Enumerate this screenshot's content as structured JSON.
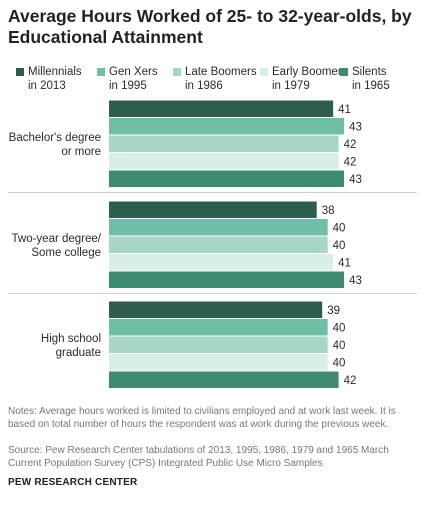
{
  "title": "Average Hours Worked of 25- to 32-year-olds, by Educational Attainment",
  "colors": {
    "Millennials in 2013": "#2e5d4e",
    "Gen Xers in 1995": "#6fbfa8",
    "Late Boomers in 1986": "#a8d6c6",
    "Early Boomers in 1979": "#d9eee6",
    "Silents in 1965": "#3e8b6f"
  },
  "chart_data": {
    "type": "bar",
    "orientation": "horizontal",
    "categories": [
      "Bachelor's degree or more",
      "Two-year degree/ Some college",
      "High school graduate"
    ],
    "category_labels": [
      [
        "Bachelor's degree",
        "or more"
      ],
      [
        "Two-year degree/",
        "Some college"
      ],
      [
        "High school",
        "graduate"
      ]
    ],
    "series": [
      {
        "name": "Millennials in 2013",
        "legend_lines": [
          "Millennials",
          "in 2013"
        ],
        "values": [
          41,
          38,
          39
        ]
      },
      {
        "name": "Gen Xers in 1995",
        "legend_lines": [
          "Gen Xers",
          "in 1995"
        ],
        "values": [
          43,
          40,
          40
        ]
      },
      {
        "name": "Late Boomers in 1986",
        "legend_lines": [
          "Late Boomers",
          "in 1986"
        ],
        "values": [
          42,
          40,
          40
        ]
      },
      {
        "name": "Early Boomers in 1979",
        "legend_lines": [
          "Early Boomers",
          "in 1979"
        ],
        "values": [
          42,
          41,
          40
        ]
      },
      {
        "name": "Silents in 1965",
        "legend_lines": [
          "Silents",
          "in 1965"
        ],
        "values": [
          43,
          43,
          42
        ]
      }
    ],
    "xlim": [
      0,
      45
    ],
    "legend_position": "top",
    "grid": false
  },
  "notes": "Notes: Average hours worked is limited to civilians employed and at work last week. It is based on total number of hours the respondent was at work during the previous week.",
  "source": "Source: Pew Research Center tabulations of 2013, 1995, 1986, 1979 and 1965 March Current Population Survey (CPS) Integrated Public Use Micro Samples",
  "brand": "PEW RESEARCH CENTER"
}
